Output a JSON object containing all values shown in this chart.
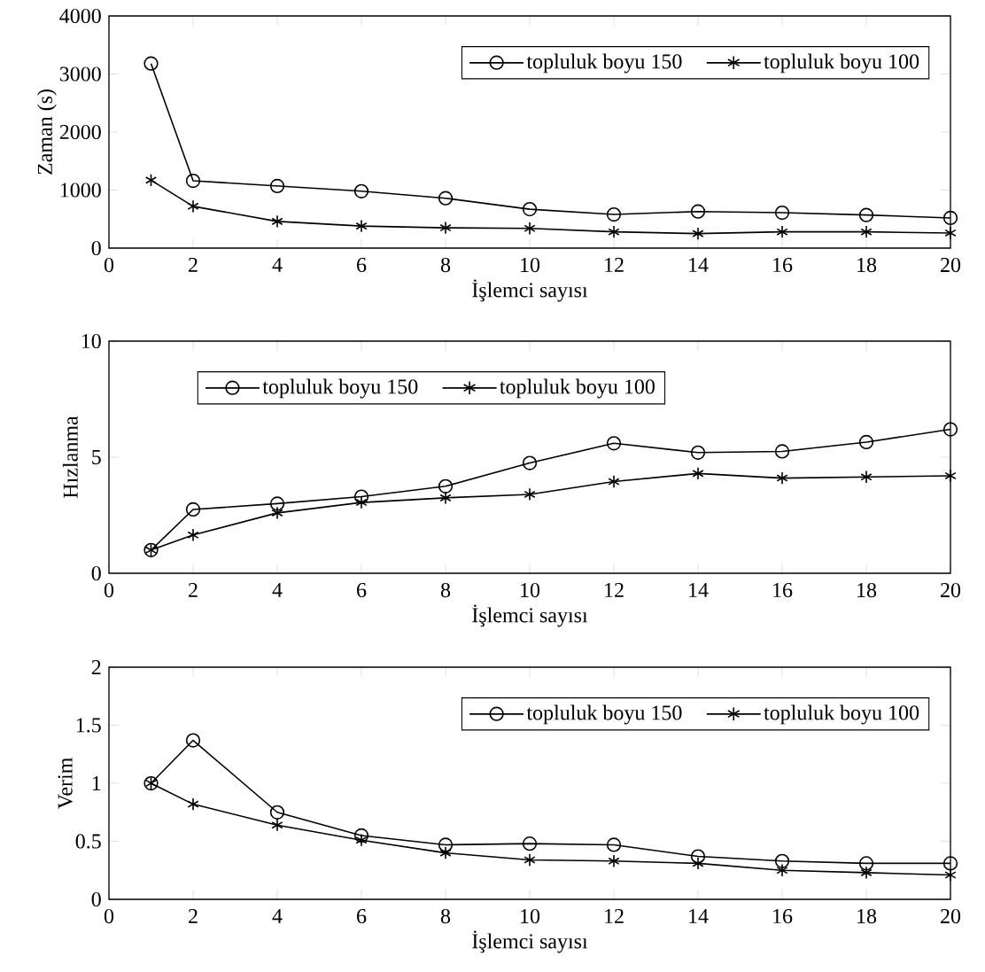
{
  "chart_data": [
    {
      "type": "line",
      "xlabel": "İşlemci sayısı",
      "ylabel": "Zaman (s)",
      "x": [
        1,
        2,
        4,
        6,
        8,
        10,
        12,
        14,
        16,
        18,
        20
      ],
      "xlim": [
        0,
        20
      ],
      "xticks": [
        0,
        2,
        4,
        6,
        8,
        10,
        12,
        14,
        16,
        18,
        20
      ],
      "ylim": [
        0,
        4000
      ],
      "yticks": [
        0,
        1000,
        2000,
        3000,
        4000
      ],
      "legend": "top right",
      "grid": false,
      "line_style": "solid",
      "series": [
        {
          "name": "topluluk boyu 150",
          "color": "#000000",
          "marker": "circle",
          "values": [
            3180,
            1160,
            1070,
            980,
            860,
            670,
            580,
            630,
            610,
            570,
            520
          ]
        },
        {
          "name": "topluluk boyu 100",
          "color": "#000000",
          "marker": "cross",
          "values": [
            1170,
            720,
            460,
            380,
            350,
            340,
            280,
            250,
            280,
            280,
            260
          ]
        }
      ]
    },
    {
      "type": "line",
      "xlabel": "İşlemci sayısı",
      "ylabel": "Hızlanma",
      "x": [
        1,
        2,
        4,
        6,
        8,
        10,
        12,
        14,
        16,
        18,
        20
      ],
      "xlim": [
        0,
        20
      ],
      "xticks": [
        0,
        2,
        4,
        6,
        8,
        10,
        12,
        14,
        16,
        18,
        20
      ],
      "ylim": [
        0,
        10
      ],
      "yticks": [
        0,
        5,
        10
      ],
      "legend": "top left",
      "grid": false,
      "line_style": "solid",
      "series": [
        {
          "name": "topluluk boyu 150",
          "color": "#000000",
          "marker": "circle",
          "values": [
            1.0,
            2.75,
            3.0,
            3.3,
            3.75,
            4.75,
            5.6,
            5.2,
            5.25,
            5.65,
            6.2
          ]
        },
        {
          "name": "topluluk boyu 100",
          "color": "#000000",
          "marker": "cross",
          "values": [
            1.0,
            1.65,
            2.6,
            3.05,
            3.25,
            3.4,
            3.95,
            4.3,
            4.1,
            4.15,
            4.2
          ]
        }
      ]
    },
    {
      "type": "line",
      "xlabel": "İşlemci sayısı",
      "ylabel": "Verim",
      "x": [
        1,
        2,
        4,
        6,
        8,
        10,
        12,
        14,
        16,
        18,
        20
      ],
      "xlim": [
        0,
        20
      ],
      "xticks": [
        0,
        2,
        4,
        6,
        8,
        10,
        12,
        14,
        16,
        18,
        20
      ],
      "ylim": [
        0,
        2
      ],
      "yticks": [
        0,
        0.5,
        1,
        1.5,
        2
      ],
      "legend": "top right",
      "grid": false,
      "line_style": "solid",
      "series": [
        {
          "name": "topluluk boyu 150",
          "color": "#000000",
          "marker": "circle",
          "values": [
            1.0,
            1.37,
            0.75,
            0.55,
            0.47,
            0.48,
            0.47,
            0.37,
            0.33,
            0.31,
            0.31
          ]
        },
        {
          "name": "topluluk boyu 100",
          "color": "#000000",
          "marker": "cross",
          "values": [
            1.0,
            0.82,
            0.64,
            0.51,
            0.4,
            0.34,
            0.33,
            0.31,
            0.25,
            0.23,
            0.21
          ]
        }
      ]
    }
  ]
}
